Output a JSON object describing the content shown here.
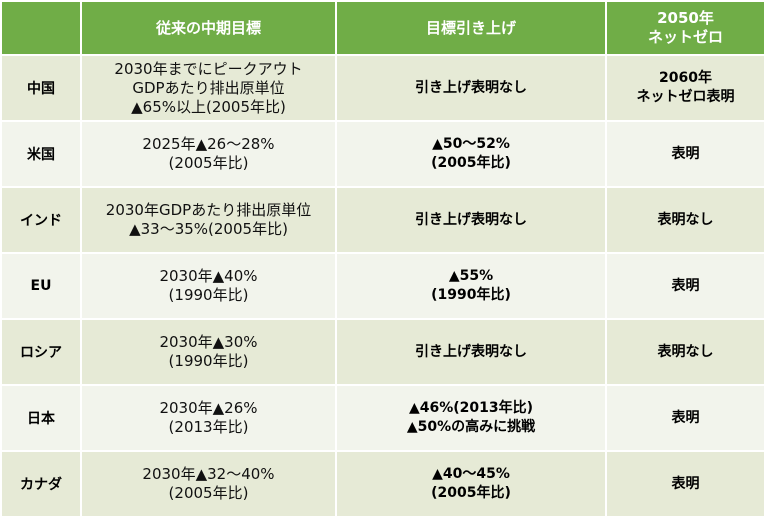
{
  "header": {
    "country": "",
    "prior": "従来の中期目標",
    "raised": "目標引き上げ",
    "net_l1": "2050年",
    "net_l2": "ネットゼロ"
  },
  "rows": [
    {
      "country": "中国",
      "prior": [
        "2030年までにピークアウト",
        "GDPあたり排出原単位",
        "▲65%以上(2005年比)"
      ],
      "raised": [
        "引き上げ表明なし"
      ],
      "net": [
        "2060年",
        "ネットゼロ表明"
      ]
    },
    {
      "country": "米国",
      "prior": [
        "2025年▲26～28%",
        "(2005年比)"
      ],
      "raised": [
        "▲50～52%",
        "(2005年比)"
      ],
      "net": [
        "表明"
      ]
    },
    {
      "country": "インド",
      "prior": [
        "2030年GDPあたり排出原単位",
        "▲33～35%(2005年比)"
      ],
      "raised": [
        "引き上げ表明なし"
      ],
      "net": [
        "表明なし"
      ]
    },
    {
      "country": "EU",
      "prior": [
        "2030年▲40%",
        "(1990年比)"
      ],
      "raised": [
        "▲55%",
        "(1990年比)"
      ],
      "net": [
        "表明"
      ]
    },
    {
      "country": "ロシア",
      "prior": [
        "2030年▲30%",
        "(1990年比)"
      ],
      "raised": [
        "引き上げ表明なし"
      ],
      "net": [
        "表明なし"
      ]
    },
    {
      "country": "日本",
      "prior": [
        "2030年▲26%",
        "(2013年比)"
      ],
      "raised": [
        "▲46%(2013年比)",
        "▲50%の高みに挑戦"
      ],
      "net": [
        "表明"
      ]
    },
    {
      "country": "カナダ",
      "prior": [
        "2030年▲32～40%",
        "(2005年比)"
      ],
      "raised": [
        "▲40～45%",
        "(2005年比)"
      ],
      "net": [
        "表明"
      ]
    }
  ],
  "colors": {
    "header_bg": "#70ad47",
    "row_bg": "#e6ead6",
    "row_alt_bg": "#f2f4ec"
  }
}
